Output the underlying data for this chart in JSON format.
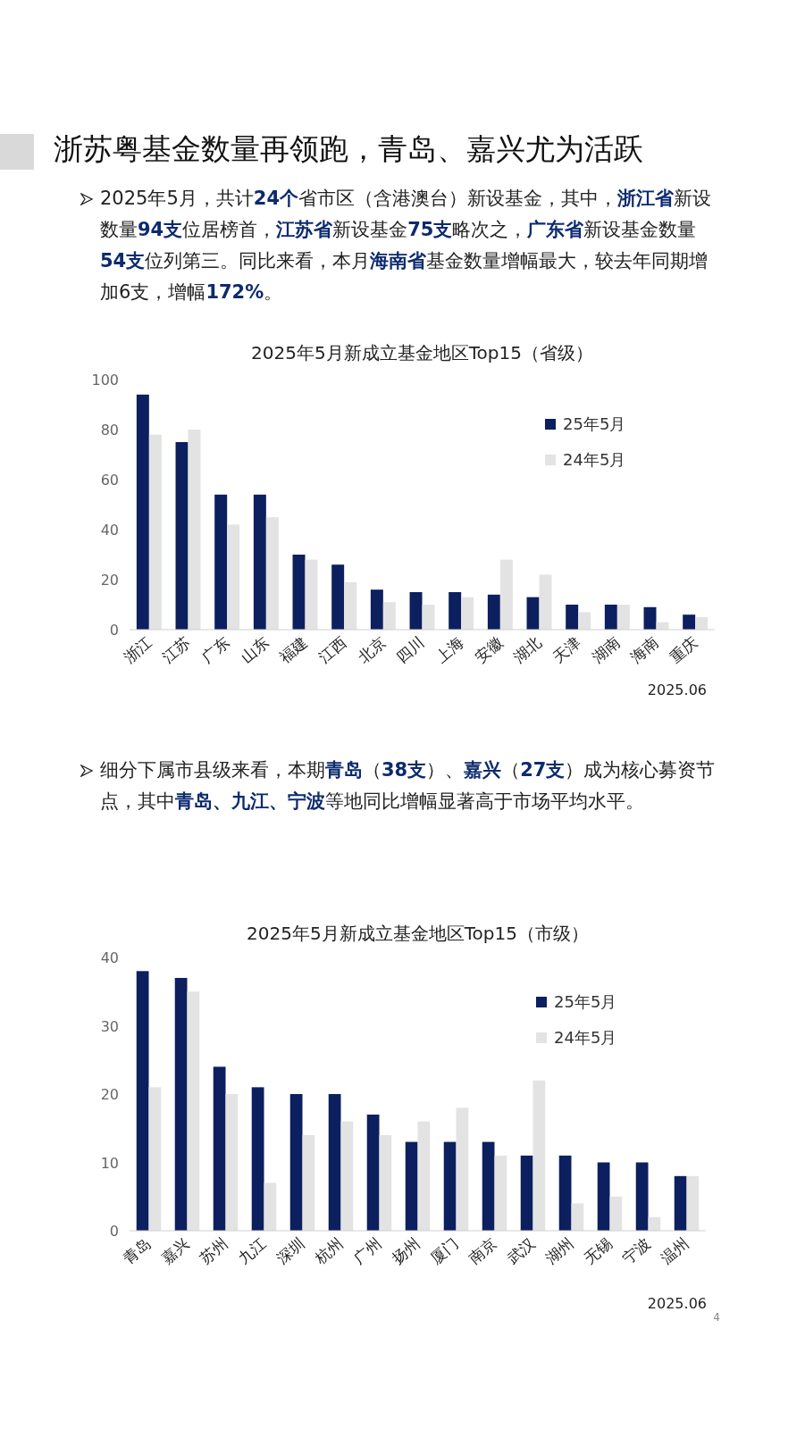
{
  "chart_data": [
    {
      "type": "bar",
      "title": "2025年5月新成立基金地区Top15（省级）",
      "categories": [
        "浙江",
        "江苏",
        "广东",
        "山东",
        "福建",
        "江西",
        "北京",
        "四川",
        "上海",
        "安徽",
        "湖北",
        "天津",
        "湖南",
        "海南",
        "重庆"
      ],
      "series": [
        {
          "name": "25年5月",
          "color": "#0c1f5e",
          "values": [
            94,
            75,
            54,
            54,
            30,
            26,
            16,
            15,
            15,
            14,
            13,
            10,
            10,
            9,
            6
          ]
        },
        {
          "name": "24年5月",
          "color": "#e3e3e3",
          "values": [
            78,
            80,
            42,
            45,
            28,
            19,
            11,
            10,
            13,
            28,
            22,
            7,
            10,
            3,
            5
          ]
        }
      ],
      "ylim": [
        0,
        100
      ],
      "yticks": [
        0,
        20,
        40,
        60,
        80,
        100
      ],
      "legend": "top right",
      "grid": false,
      "annotations": [
        "浙苏粤基金数量再领跑，青岛、嘉兴尤为活跃",
        "2025年5月，共计**24个**省市区（含港澳台）新设基金，其中，**浙江省**新设数量**94支**位居榜首，**江苏省**新设基金**75支**略次之，**广东省**新设基金数量**54支**位列第三。同比来看，本月**海南省**基金数量增幅最大，较去年同期增加6支，增幅**172%**。",
        "2025.06"
      ]
    },
    {
      "type": "bar",
      "title": "2025年5月新成立基金地区Top15（市级）",
      "categories": [
        "青岛",
        "嘉兴",
        "苏州",
        "九江",
        "深圳",
        "杭州",
        "广州",
        "扬州",
        "厦门",
        "南京",
        "武汉",
        "湖州",
        "无锡",
        "宁波",
        "温州"
      ],
      "series": [
        {
          "name": "25年5月",
          "color": "#0c1f5e",
          "values": [
            38,
            37,
            24,
            21,
            20,
            20,
            17,
            13,
            13,
            13,
            11,
            11,
            10,
            10,
            8
          ]
        },
        {
          "name": "24年5月",
          "color": "#e3e3e3",
          "values": [
            21,
            35,
            20,
            7,
            14,
            16,
            14,
            16,
            18,
            11,
            22,
            4,
            5,
            2,
            8
          ]
        }
      ],
      "ylim": [
        0,
        40
      ],
      "yticks": [
        0,
        10,
        20,
        30,
        40
      ],
      "legend": "top right",
      "grid": false,
      "annotations": [
        "细分下属市县级来看，本期**青岛**（**38支**）、**嘉兴**（**27支**）成为核心募资节点，其中**青岛、九江、宁波**等地同比增幅显著高于市场平均水平。",
        "2025.06",
        "4"
      ]
    }
  ]
}
